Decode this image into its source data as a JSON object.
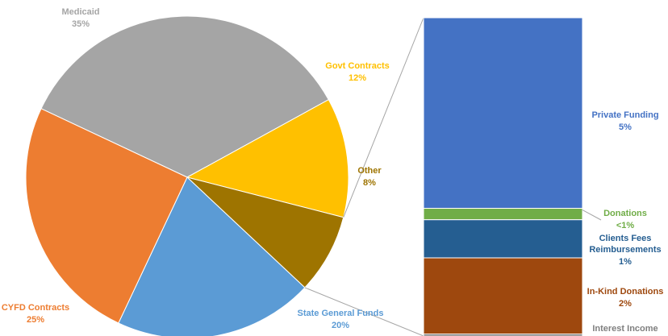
{
  "chart_data": [
    {
      "type": "pie",
      "title": "",
      "slices": [
        {
          "label": "Medicaid",
          "value": 35,
          "value_label": "35%",
          "color": "#A5A5A5"
        },
        {
          "label": "Govt Contracts",
          "value": 12,
          "value_label": "12%",
          "color": "#FFC000"
        },
        {
          "label": "Other",
          "value": 8,
          "value_label": "8%",
          "color": "#9E7400"
        },
        {
          "label": "State General Funds",
          "value": 20,
          "value_label": "20%",
          "color": "#5B9BD5"
        },
        {
          "label": "CYFD Contracts",
          "value": 25,
          "value_label": "25%",
          "color": "#ED7D31"
        }
      ],
      "exploded_slice": "Other",
      "legend": "none"
    },
    {
      "type": "bar",
      "orientation": "stacked-vertical",
      "description_of": "Other",
      "segments": [
        {
          "label": "Private Funding",
          "value": 5,
          "value_label": "5%",
          "color": "#4472C4"
        },
        {
          "label": "Donations",
          "value": 0.3,
          "value_label": "<1%",
          "color": "#70AD47"
        },
        {
          "label": "Clients Fees Reimbursements",
          "value": 1,
          "value_label": "1%",
          "color": "#255E91",
          "label_lines": [
            "Clients Fees",
            "Reimbursements"
          ]
        },
        {
          "label": "In-Kind Donations",
          "value": 2,
          "value_label": "2%",
          "color": "#9E480E"
        },
        {
          "label": "Interest Income",
          "value": 0.05,
          "value_label": "",
          "color": "#636363"
        }
      ],
      "legend": "none"
    }
  ]
}
